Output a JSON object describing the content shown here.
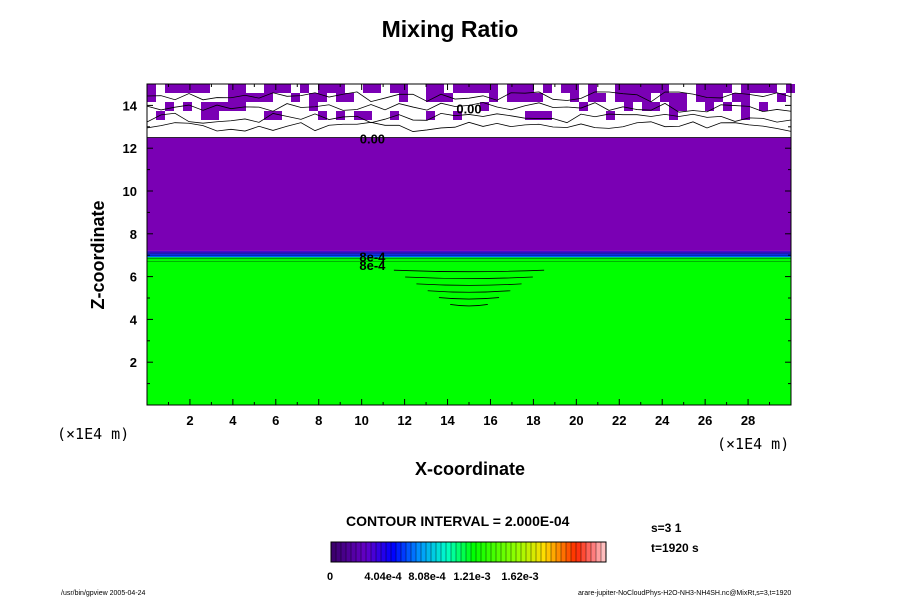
{
  "chart_data": {
    "type": "heatmap",
    "title": "Mixing Ratio",
    "xlabel": "X-coordinate",
    "ylabel": "Z-coordinate",
    "x_unit": "(×1E4 m)",
    "y_unit": "(×1E4 m)",
    "xlim": [
      0,
      30
    ],
    "ylim": [
      0,
      15
    ],
    "x_ticks": [
      2,
      4,
      6,
      8,
      10,
      12,
      14,
      16,
      18,
      20,
      22,
      24,
      26,
      28
    ],
    "y_ticks": [
      2,
      4,
      6,
      8,
      10,
      12,
      14
    ],
    "regions": [
      {
        "name": "lower layer",
        "z_range": [
          0,
          6.9
        ],
        "approx_value": 0.00084,
        "color": "#00ff00"
      },
      {
        "name": "transition",
        "z_range": [
          6.6,
          7.2
        ],
        "color": "#0044ff"
      },
      {
        "name": "upper layer",
        "z_range": [
          7.2,
          12.5
        ],
        "approx_value": 0.0,
        "color": "#7a00b4"
      },
      {
        "name": "top layer",
        "z_range": [
          12.5,
          15
        ],
        "approx_value": 0.0,
        "color": "#ffffff"
      }
    ],
    "contour_labels": [
      {
        "text": "0.00",
        "x": 15.0,
        "z": 13.8
      },
      {
        "text": "0.00",
        "x": 10.5,
        "z": 12.4
      },
      {
        "text": "8e-4",
        "x": 10.5,
        "z": 6.9
      },
      {
        "text": "8e-4",
        "x": 10.5,
        "z": 6.5
      }
    ],
    "anomaly": {
      "x_center": 15.0,
      "z_top": 6.3,
      "z_bottom": 4.7,
      "x_halfwidth": 3.5
    },
    "colorbar": {
      "ticks": [
        "0",
        "4.04e-4",
        "8.08e-4",
        "1.21e-3",
        "1.62e-3"
      ],
      "range": [
        0,
        0.00202
      ]
    }
  },
  "contour_interval": "CONTOUR INTERVAL = 2.000E-04",
  "info": {
    "s": "s=3 1",
    "t": "t=1920 s"
  },
  "footer": {
    "left": "/usr/bin/gpview 2005-04-24",
    "right": "arare-jupiter-NoCloudPhys-H2O-NH3-NH4SH.nc@MixRt,s=3,t=1920"
  },
  "colors": {
    "lower": "#00ff00",
    "upper": "#7a00b4",
    "background": "#ffffff"
  }
}
